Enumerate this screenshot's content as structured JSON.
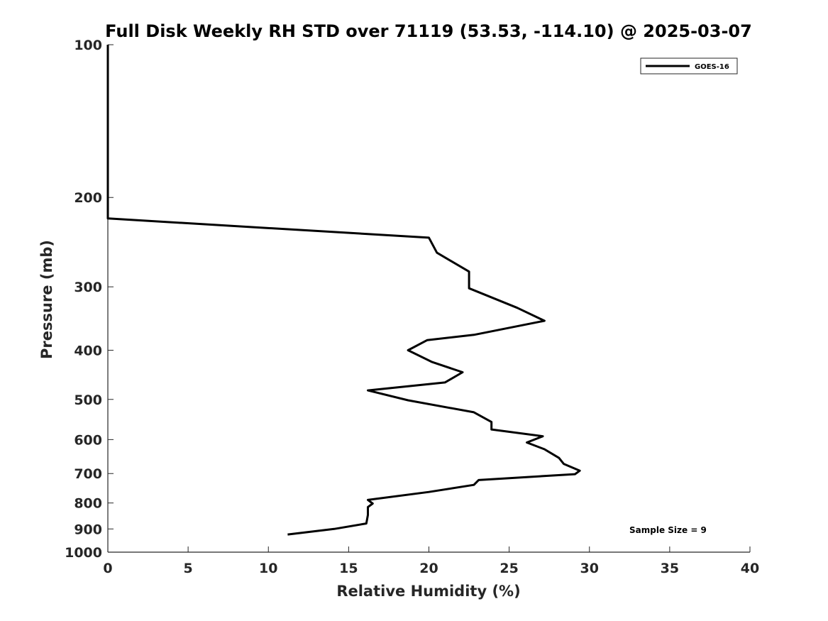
{
  "chart_data": {
    "type": "line",
    "title": "Full Disk Weekly RH STD over 71119 (53.53, -114.10) @ 2025-03-07",
    "xlabel": "Relative Humidity (%)",
    "ylabel": "Pressure (mb)",
    "xlim": [
      0,
      40
    ],
    "ylim": [
      100,
      1000
    ],
    "yscale": "log",
    "y_reversed": true,
    "x_ticks": [
      0,
      5,
      10,
      15,
      20,
      25,
      30,
      35,
      40
    ],
    "y_ticks": [
      100,
      200,
      300,
      400,
      500,
      600,
      700,
      800,
      900,
      1000
    ],
    "grid": false,
    "legend_position": "top-right",
    "line_color": "#000000",
    "series": [
      {
        "name": "GOES-16",
        "x": [
          0,
          0,
          0,
          0,
          20.0,
          20.5,
          22.5,
          22.5,
          25.5,
          27.2,
          22.8,
          19.9,
          18.7,
          20.2,
          22.1,
          21.0,
          16.2,
          18.7,
          22.8,
          23.9,
          23.9,
          27.1,
          26.1,
          27.2,
          28.1,
          28.4,
          29.4,
          29.1,
          23.1,
          22.8,
          20.0,
          16.2,
          16.5,
          16.2,
          16.2,
          16.1,
          14.1,
          11.2
        ],
        "y": [
          100,
          125,
          170,
          220,
          240,
          257,
          280,
          302,
          330,
          350,
          373,
          382,
          400,
          422,
          442,
          463,
          480,
          502,
          530,
          554,
          573,
          591,
          608,
          627,
          652,
          670,
          691,
          702,
          721,
          737,
          761,
          789,
          802,
          815,
          845,
          878,
          900,
          923
        ]
      }
    ],
    "annotations": [
      "Sample Size = 9"
    ]
  }
}
